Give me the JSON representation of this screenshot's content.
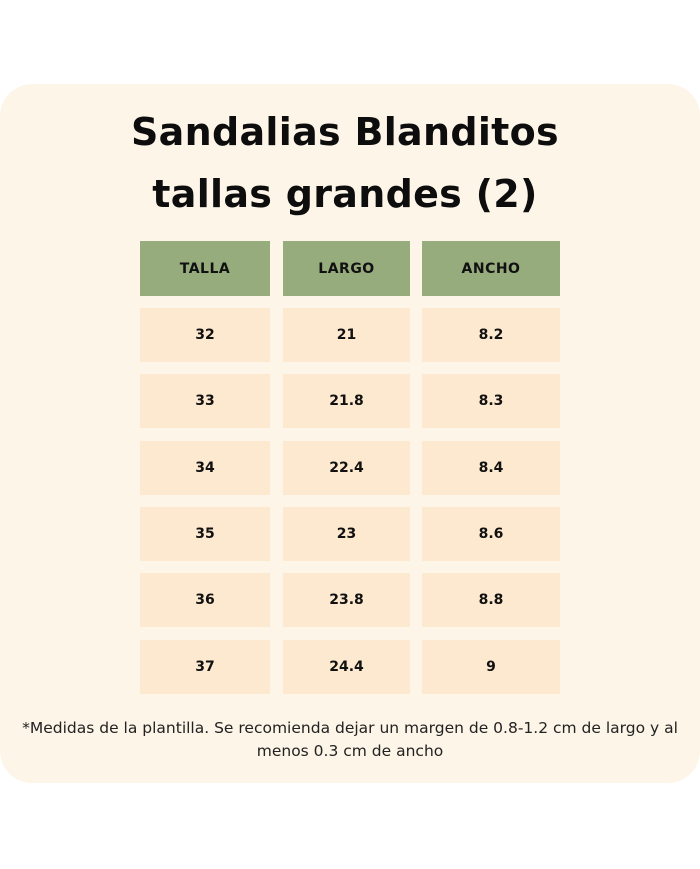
{
  "title": {
    "line1": "Sandalias Blanditos",
    "line2": "tallas grandes (2)"
  },
  "colors": {
    "header_bg": "#97ac7d",
    "cell_bg": "#fde9cf",
    "card_bg": "#fdf5e8"
  },
  "table": {
    "headers": [
      "TALLA",
      "LARGO",
      "ANCHO"
    ],
    "rows": [
      [
        "32",
        "21",
        "8.2"
      ],
      [
        "33",
        "21.8",
        "8.3"
      ],
      [
        "34",
        "22.4",
        "8.4"
      ],
      [
        "35",
        "23",
        "8.6"
      ],
      [
        "36",
        "23.8",
        "8.8"
      ],
      [
        "37",
        "24.4",
        "9"
      ]
    ]
  },
  "footnote": {
    "line1": "*Medidas de la plantilla. Se recomienda dejar un margen de 0.8-1.2 cm de largo y al",
    "line2": "menos 0.3 cm de ancho"
  }
}
